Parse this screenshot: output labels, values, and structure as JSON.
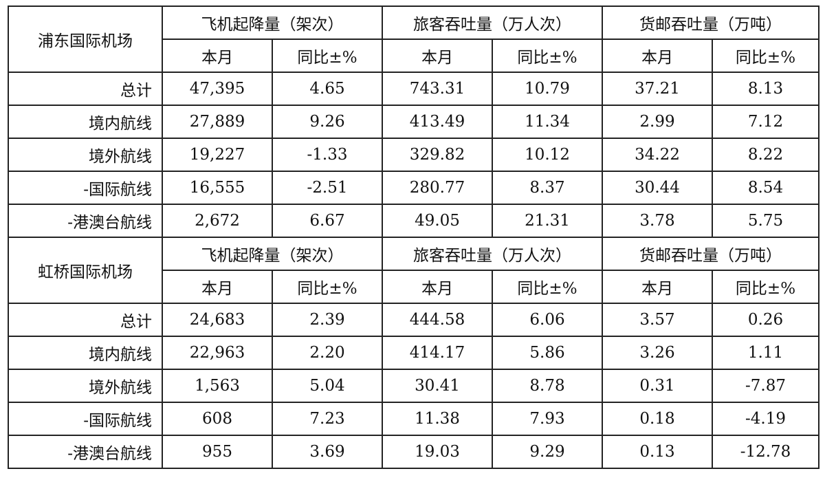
{
  "airports": [
    {
      "name": "浦东国际机场",
      "groups": [
        "飞机起降量（架次）",
        "旅客吞吐量（万人次）",
        "货邮吞吐量（万吨）"
      ],
      "sub_headers": [
        "本月",
        "同比±%",
        "本月",
        "同比±%",
        "本月",
        "同比±%"
      ],
      "rows": [
        {
          "label": "总计",
          "values": [
            "47,395",
            "4.65",
            "743.31",
            "10.79",
            "37.21",
            "8.13"
          ]
        },
        {
          "label": "境内航线",
          "values": [
            "27,889",
            "9.26",
            "413.49",
            "11.34",
            "2.99",
            "7.12"
          ]
        },
        {
          "label": "境外航线",
          "values": [
            "19,227",
            "-1.33",
            "329.82",
            "10.12",
            "34.22",
            "8.22"
          ]
        },
        {
          "label": "-国际航线",
          "values": [
            "16,555",
            "-2.51",
            "280.77",
            "8.37",
            "30.44",
            "8.54"
          ]
        },
        {
          "label": "-港澳台航线",
          "values": [
            "2,672",
            "6.67",
            "49.05",
            "21.31",
            "3.78",
            "5.75"
          ]
        }
      ]
    },
    {
      "name": "虹桥国际机场",
      "groups": [
        "飞机起降量（架次）",
        "旅客吞吐量（万人次）",
        "货邮吞吐量（万吨）"
      ],
      "sub_headers": [
        "本月",
        "同比±%",
        "本月",
        "同比±%",
        "本月",
        "同比±%"
      ],
      "rows": [
        {
          "label": "总计",
          "values": [
            "24,683",
            "2.39",
            "444.58",
            "6.06",
            "3.57",
            "0.26"
          ]
        },
        {
          "label": "境内航线",
          "values": [
            "22,963",
            "2.20",
            "414.17",
            "5.86",
            "3.26",
            "1.11"
          ]
        },
        {
          "label": "境外航线",
          "values": [
            "1,563",
            "5.04",
            "30.41",
            "8.78",
            "0.31",
            "-7.87"
          ]
        },
        {
          "label": "-国际航线",
          "values": [
            "608",
            "7.23",
            "11.38",
            "7.93",
            "0.18",
            "-4.19"
          ]
        },
        {
          "label": "-港澳台航线",
          "values": [
            "955",
            "3.69",
            "19.03",
            "9.29",
            "0.13",
            "-12.78"
          ]
        }
      ]
    }
  ]
}
